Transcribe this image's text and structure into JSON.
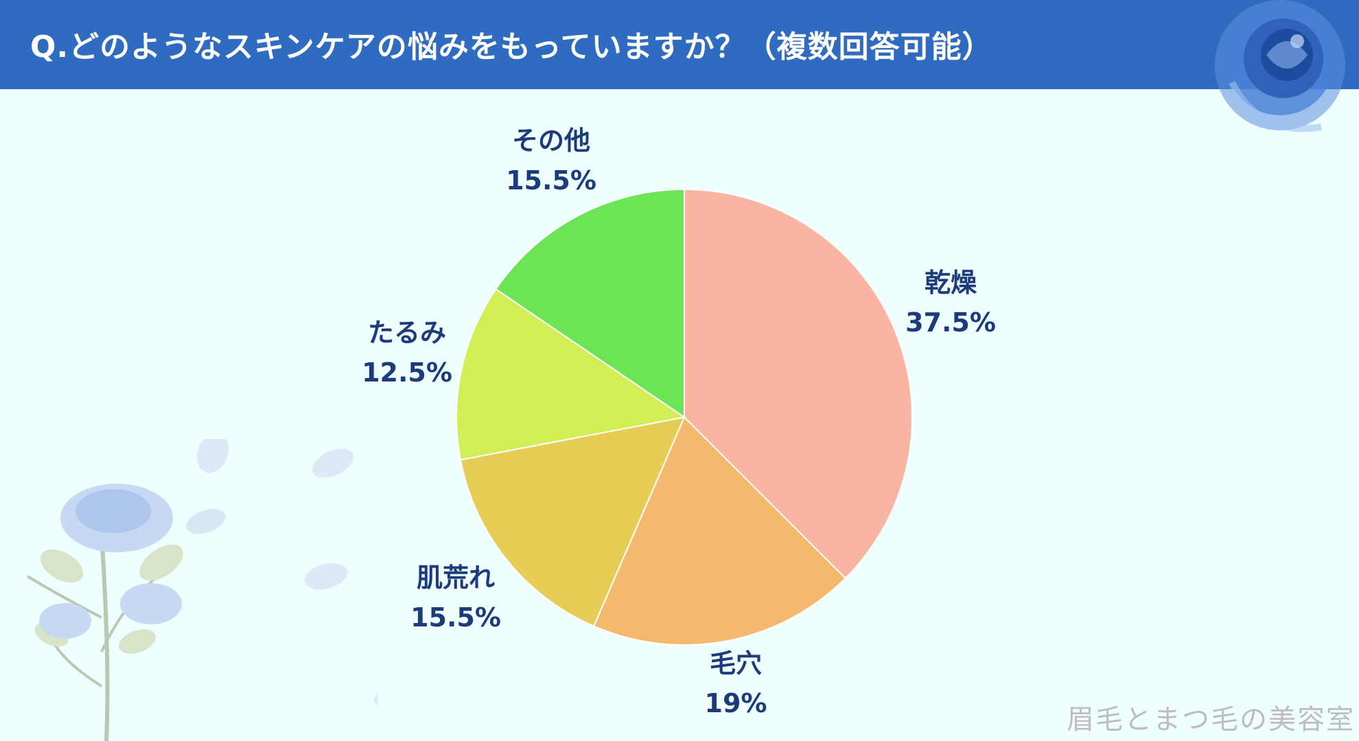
{
  "header": {
    "title": "Q.どのようなスキンケアの悩みをもっていますか？（複数回答可能）"
  },
  "chart_data": {
    "type": "pie",
    "categories": [
      "乾燥",
      "毛穴",
      "肌荒れ",
      "たるみ",
      "その他"
    ],
    "values": [
      37.5,
      19,
      15.5,
      12.5,
      15.5
    ],
    "value_labels": [
      "37.5%",
      "19%",
      "15.5%",
      "12.5%",
      "15.5%"
    ],
    "colors": [
      "#f9b5a2",
      "#f5b96d",
      "#e6cd55",
      "#d2ee55",
      "#6be556"
    ],
    "start": "12 o'clock, clockwise"
  },
  "decorations": {
    "top_right_icon": "blue-rose-icon",
    "bottom_left_icon": "blue-rose-branch-icon",
    "colors": {
      "header": "#2f6bc0",
      "background": "#effefe",
      "label": "#1c3b7c"
    }
  },
  "watermark": "眉毛とまつ毛の美容室"
}
